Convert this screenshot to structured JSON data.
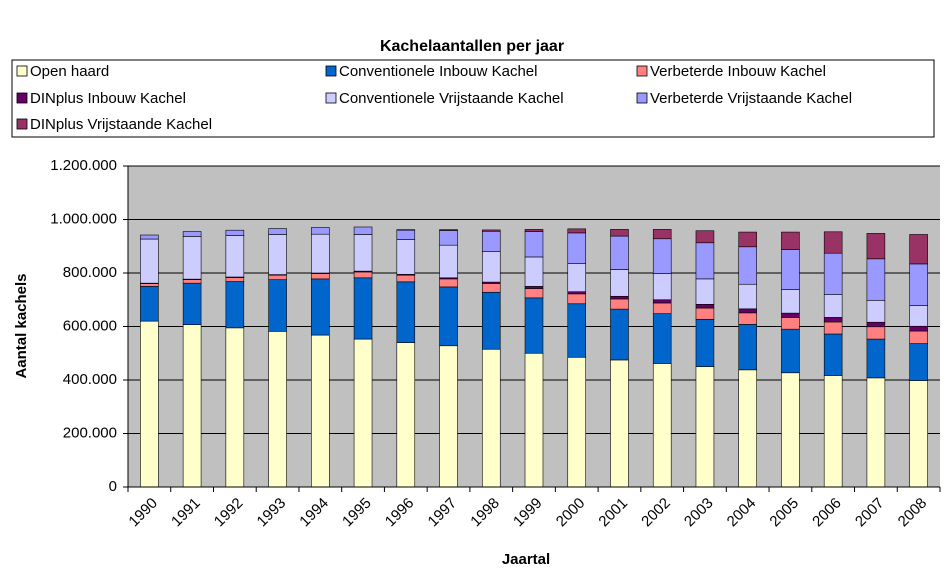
{
  "chart_data": {
    "type": "stacked_bar",
    "title": "Kachelaantallen per jaar",
    "xlabel": "Jaartal",
    "ylabel": "Aantal kachels",
    "categories": [
      "1990",
      "1991",
      "1992",
      "1993",
      "1994",
      "1995",
      "1996",
      "1997",
      "1998",
      "1999",
      "2000",
      "2001",
      "2002",
      "2003",
      "2004",
      "2005",
      "2006",
      "2007",
      "2008"
    ],
    "series": [
      {
        "name": "Open haard",
        "color": "#FFFFCC",
        "values": [
          620000,
          607000,
          595000,
          582000,
          568000,
          553000,
          540000,
          528000,
          515000,
          500000,
          485000,
          475000,
          462000,
          450000,
          438000,
          427000,
          417000,
          408000,
          398000
        ]
      },
      {
        "name": "Conventionele Inbouw Kachel",
        "color": "#0066CC",
        "values": [
          130000,
          155000,
          173000,
          193000,
          210000,
          229000,
          227000,
          220000,
          213000,
          207000,
          200000,
          190000,
          186000,
          177000,
          170000,
          163000,
          155000,
          145000,
          138000
        ]
      },
      {
        "name": "Verbeterde Inbouw Kachel",
        "color": "#FF8080",
        "values": [
          10000,
          13000,
          15000,
          17000,
          20000,
          22000,
          25000,
          30000,
          33000,
          35000,
          37000,
          38000,
          40000,
          42000,
          43000,
          44000,
          45000,
          46000,
          47000
        ]
      },
      {
        "name": "DINplus Inbouw Kachel",
        "color": "#660066",
        "values": [
          2000,
          2000,
          2000,
          2000,
          2000,
          3000,
          3000,
          4000,
          5000,
          8000,
          8000,
          10000,
          12000,
          14000,
          15000,
          16000,
          17000,
          17000,
          18000
        ]
      },
      {
        "name": "Conventionele Vrijstaande Kachel",
        "color": "#CCCCFF",
        "values": [
          165000,
          160000,
          155000,
          150000,
          145000,
          137000,
          130000,
          122000,
          115000,
          110000,
          105000,
          100000,
          98000,
          95000,
          92000,
          88000,
          85000,
          82000,
          78000
        ]
      },
      {
        "name": "Verbeterde Vrijstaande Kachel",
        "color": "#9999FF",
        "values": [
          15000,
          18000,
          20000,
          22000,
          25000,
          28000,
          35000,
          55000,
          75000,
          95000,
          115000,
          125000,
          130000,
          135000,
          140000,
          150000,
          155000,
          155000,
          155000
        ]
      },
      {
        "name": "DINplus Vrijstaande Kachel",
        "color": "#993366",
        "values": [
          0,
          0,
          0,
          0,
          0,
          0,
          2000,
          3000,
          5000,
          8000,
          15000,
          25000,
          35000,
          45000,
          55000,
          65000,
          80000,
          95000,
          110000
        ]
      }
    ],
    "ylim": [
      0,
      1200000
    ],
    "yticks": [
      0,
      {
        "value": 200000,
        "label": "200.000"
      },
      {
        "value": 400000,
        "label": "400.000"
      },
      {
        "value": 600000,
        "label": "600.000"
      },
      {
        "value": 800000,
        "label": "800.000"
      },
      {
        "value": 1000000,
        "label": "1.000.000"
      },
      {
        "value": 1200000,
        "label": "1.200.000"
      }
    ],
    "grid": true,
    "plot_background": "#C0C0C0",
    "legend_position": "top"
  }
}
